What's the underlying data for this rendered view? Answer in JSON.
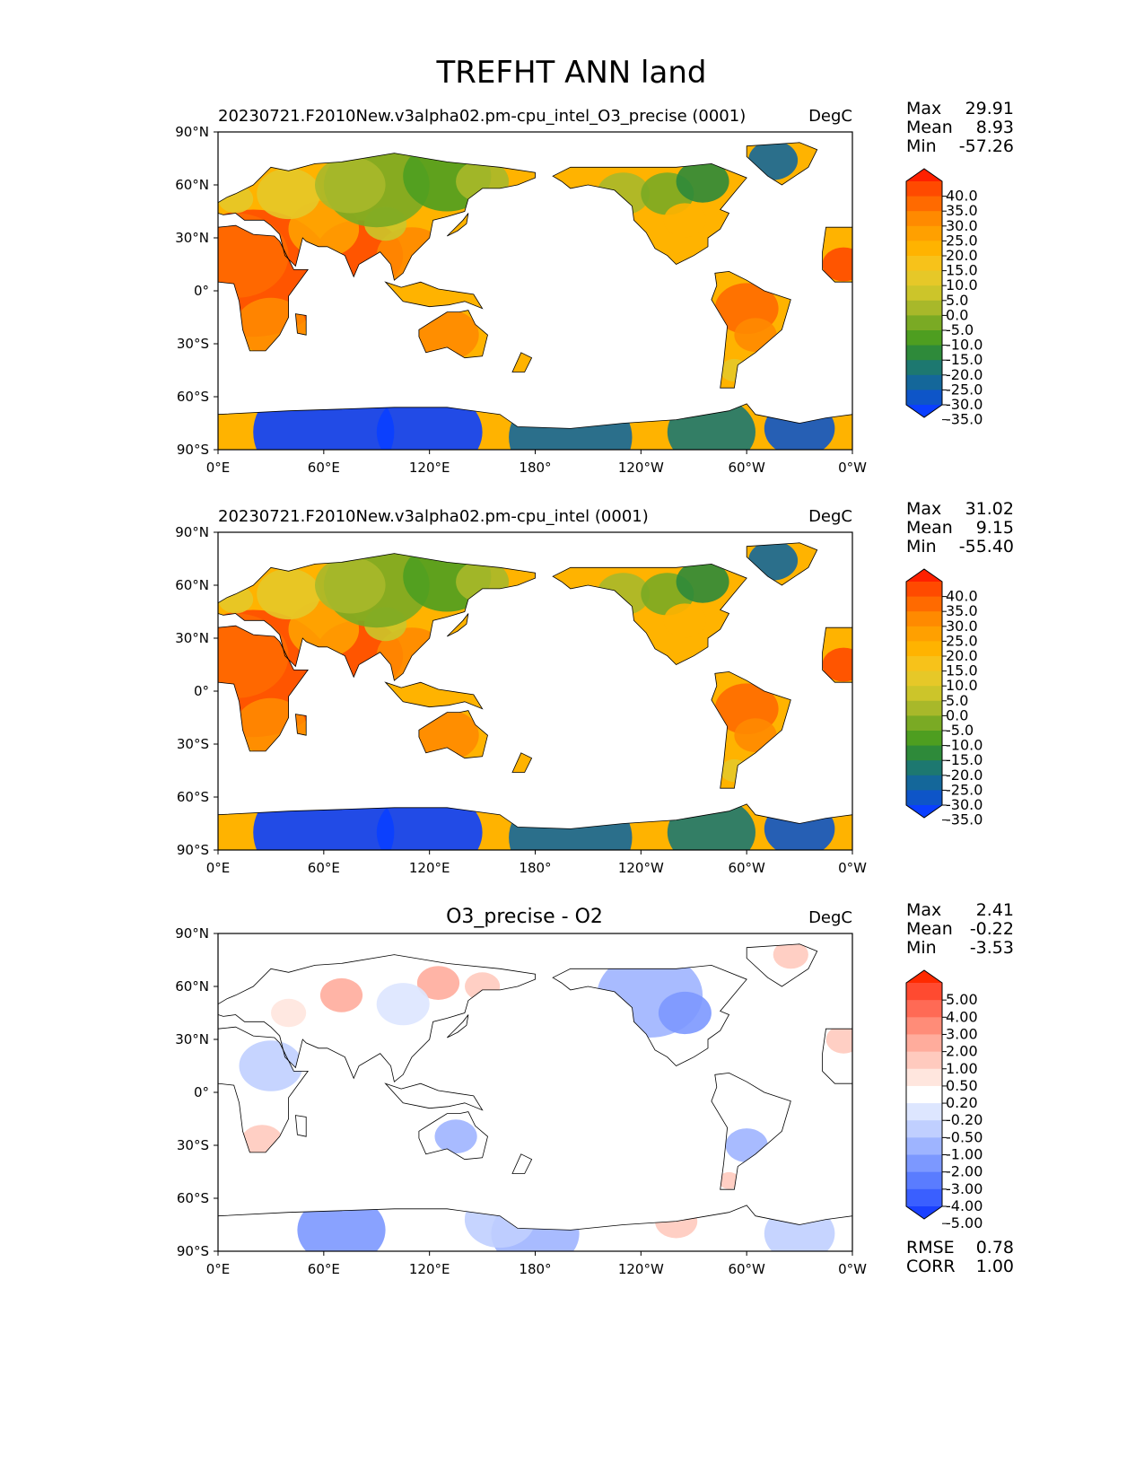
{
  "figure_title": "TREFHT ANN land",
  "chart_data": [
    {
      "type": "heatmap",
      "title": "20230721.F2010New.v3alpha02.pm-cpu_intel_O3_precise (0001)",
      "units": "DegC",
      "x_ticks": [
        "0°E",
        "60°E",
        "120°E",
        "180°",
        "120°W",
        "60°W",
        "0°W"
      ],
      "y_ticks": [
        "90°N",
        "60°N",
        "30°N",
        "0°",
        "30°S",
        "60°S",
        "90°S"
      ],
      "xlim": [
        0,
        360
      ],
      "ylim": [
        -90,
        90
      ],
      "stats": {
        "labels": [
          "Max",
          "Mean",
          "Min"
        ],
        "values": [
          "29.91",
          "8.93",
          "-57.26"
        ]
      },
      "colorbar": {
        "levels": [
          "40.0",
          "35.0",
          "30.0",
          "25.0",
          "20.0",
          "15.0",
          "10.0",
          "5.0",
          "0.0",
          "-5.0",
          "-10.0",
          "-15.0",
          "-20.0",
          "-25.0",
          "-30.0",
          "-35.0"
        ],
        "colors": [
          "#ff2000",
          "#ff4a00",
          "#ff6a00",
          "#ff8a00",
          "#ffa000",
          "#ffb300",
          "#f7c21a",
          "#e6c828",
          "#ccc52a",
          "#a8b82a",
          "#7aaa24",
          "#4e9e20",
          "#2e8a3a",
          "#1d7870",
          "#14679a",
          "#0e55c8",
          "#0a3fff"
        ]
      }
    },
    {
      "type": "heatmap",
      "title": "20230721.F2010New.v3alpha02.pm-cpu_intel (0001)",
      "units": "DegC",
      "x_ticks": [
        "0°E",
        "60°E",
        "120°E",
        "180°",
        "120°W",
        "60°W",
        "0°W"
      ],
      "y_ticks": [
        "90°N",
        "60°N",
        "30°N",
        "0°",
        "30°S",
        "60°S",
        "90°S"
      ],
      "xlim": [
        0,
        360
      ],
      "ylim": [
        -90,
        90
      ],
      "stats": {
        "labels": [
          "Max",
          "Mean",
          "Min"
        ],
        "values": [
          "31.02",
          "9.15",
          "-55.40"
        ]
      },
      "colorbar": {
        "levels": [
          "40.0",
          "35.0",
          "30.0",
          "25.0",
          "20.0",
          "15.0",
          "10.0",
          "5.0",
          "0.0",
          "-5.0",
          "-10.0",
          "-15.0",
          "-20.0",
          "-25.0",
          "-30.0",
          "-35.0"
        ],
        "colors": [
          "#ff2000",
          "#ff4a00",
          "#ff6a00",
          "#ff8a00",
          "#ffa000",
          "#ffb300",
          "#f7c21a",
          "#e6c828",
          "#ccc52a",
          "#a8b82a",
          "#7aaa24",
          "#4e9e20",
          "#2e8a3a",
          "#1d7870",
          "#14679a",
          "#0e55c8",
          "#0a3fff"
        ]
      }
    },
    {
      "type": "heatmap",
      "title": "O3_precise - O2",
      "units": "DegC",
      "x_ticks": [
        "0°E",
        "60°E",
        "120°E",
        "180°",
        "120°W",
        "60°W",
        "0°W"
      ],
      "y_ticks": [
        "90°N",
        "60°N",
        "30°N",
        "0°",
        "30°S",
        "60°S",
        "90°S"
      ],
      "xlim": [
        0,
        360
      ],
      "ylim": [
        -90,
        90
      ],
      "stats": {
        "labels": [
          "Max",
          "Mean",
          "Min"
        ],
        "values": [
          "2.41",
          "-0.22",
          "-3.53"
        ]
      },
      "extra_stats": {
        "labels": [
          "RMSE",
          "CORR"
        ],
        "values": [
          "0.78",
          "1.00"
        ]
      },
      "colorbar": {
        "levels": [
          "5.00",
          "4.00",
          "3.00",
          "2.00",
          "1.00",
          "0.50",
          "0.20",
          "-0.20",
          "-0.50",
          "-1.00",
          "-2.00",
          "-3.00",
          "-4.00",
          "-5.00"
        ],
        "colors": [
          "#ff2a00",
          "#ff4a30",
          "#ff6a55",
          "#ff8c78",
          "#ffac9c",
          "#ffcabe",
          "#ffe6de",
          "#ffffff",
          "#dde6ff",
          "#c0cfff",
          "#9eb4ff",
          "#7c98ff",
          "#5a7cff",
          "#3a5fff",
          "#1a40ff"
        ]
      }
    }
  ]
}
